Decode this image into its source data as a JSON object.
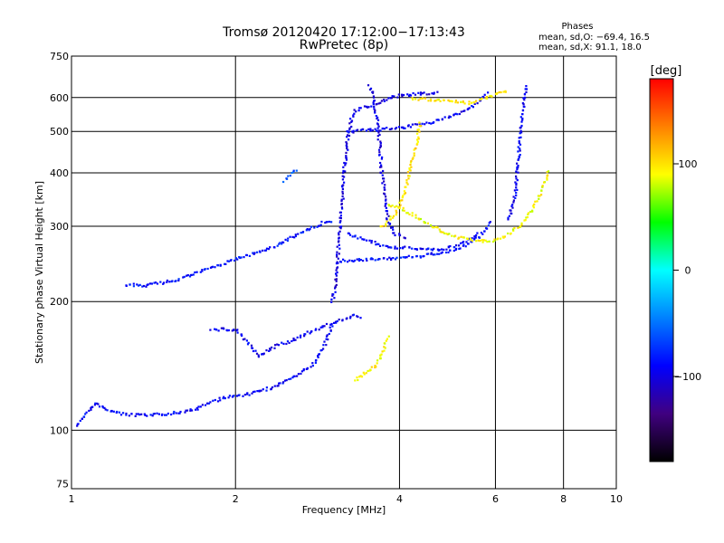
{
  "chart_data": {
    "type": "scatter",
    "title": "Tromsø 20120420 17:12:00−17:13:43",
    "subtitle": "RwPretec (8p)",
    "xlabel": "Frequency [MHz]",
    "ylabel": "Stationary phase Virtual Height [km]",
    "x_scale": "log",
    "y_scale": "log",
    "xlim": [
      1,
      10
    ],
    "ylim": [
      73,
      750
    ],
    "x_ticks": [
      1,
      2,
      4,
      6,
      8,
      10
    ],
    "x_tick_labels": [
      "1",
      "2",
      "4",
      "6",
      "8",
      "10"
    ],
    "y_ticks": [
      75,
      100,
      200,
      300,
      400,
      500,
      600,
      750
    ],
    "y_tick_labels": [
      "75",
      "100",
      "200",
      "300",
      "400",
      "500",
      "600",
      "750"
    ],
    "grid": true,
    "phase_box": {
      "heading": "Phases",
      "line1": "mean, sd,O: −69.4, 16.5",
      "line2": "mean, sd,X:  91.1, 18.0"
    },
    "colorbar": {
      "label": "[deg]",
      "range": [
        -180,
        180
      ],
      "ticks": [
        100,
        0,
        -100
      ],
      "tick_labels": [
        "100",
        "0",
        "−100"
      ],
      "colors": [
        "#ff0000",
        "#ff8000",
        "#ffff00",
        "#00ff00",
        "#00ffff",
        "#0080ff",
        "#0000ff",
        "#400080",
        "#000000"
      ]
    },
    "series": [
      {
        "phase": -90,
        "points": [
          [
            1.02,
            103
          ],
          [
            1.05,
            108
          ],
          [
            1.08,
            113
          ],
          [
            1.1,
            116
          ],
          [
            1.13,
            114
          ],
          [
            1.17,
            112
          ],
          [
            1.22,
            110
          ],
          [
            1.3,
            109
          ],
          [
            1.4,
            109
          ],
          [
            1.5,
            110
          ],
          [
            1.6,
            111
          ],
          [
            1.7,
            113
          ],
          [
            1.8,
            117
          ],
          [
            1.9,
            120
          ],
          [
            2.0,
            121
          ],
          [
            2.1,
            122
          ],
          [
            2.2,
            124
          ],
          [
            2.3,
            126
          ],
          [
            2.45,
            130
          ],
          [
            2.6,
            136
          ],
          [
            2.7,
            140
          ],
          [
            2.8,
            146
          ],
          [
            2.9,
            158
          ],
          [
            3.0,
            178
          ]
        ]
      },
      {
        "phase": -85,
        "points": [
          [
            1.25,
            220
          ],
          [
            1.35,
            219
          ],
          [
            1.45,
            222
          ],
          [
            1.55,
            226
          ],
          [
            1.65,
            232
          ],
          [
            1.75,
            238
          ],
          [
            1.85,
            244
          ],
          [
            1.95,
            250
          ],
          [
            2.05,
            256
          ],
          [
            2.2,
            262
          ],
          [
            2.35,
            270
          ],
          [
            2.5,
            282
          ],
          [
            2.6,
            290
          ],
          [
            2.7,
            296
          ],
          [
            2.8,
            302
          ],
          [
            2.9,
            308
          ],
          [
            3.0,
            306
          ]
        ]
      },
      {
        "phase": -95,
        "points": [
          [
            1.8,
            173
          ],
          [
            1.9,
            173
          ],
          [
            2.0,
            173
          ],
          [
            2.2,
            150
          ],
          [
            2.3,
            155
          ],
          [
            2.4,
            160
          ],
          [
            2.5,
            162
          ],
          [
            2.6,
            165
          ],
          [
            2.7,
            170
          ],
          [
            3.1,
            182
          ],
          [
            3.3,
            186
          ],
          [
            3.4,
            184
          ]
        ]
      },
      {
        "phase": -100,
        "points": [
          [
            3.0,
            200
          ],
          [
            3.05,
            230
          ],
          [
            3.1,
            300
          ],
          [
            3.15,
            400
          ],
          [
            3.2,
            480
          ],
          [
            3.25,
            540
          ],
          [
            3.3,
            560
          ],
          [
            3.4,
            570
          ],
          [
            3.6,
            580
          ],
          [
            3.8,
            600
          ],
          [
            4.0,
            610
          ],
          [
            4.3,
            615
          ],
          [
            4.7,
            620
          ]
        ]
      },
      {
        "phase": -95,
        "points": [
          [
            3.2,
            500
          ],
          [
            3.4,
            505
          ],
          [
            3.7,
            508
          ],
          [
            4.0,
            512
          ],
          [
            4.5,
            525
          ],
          [
            5.0,
            545
          ],
          [
            5.5,
            580
          ],
          [
            5.8,
            620
          ]
        ]
      },
      {
        "phase": -100,
        "points": [
          [
            3.5,
            640
          ],
          [
            3.55,
            620
          ],
          [
            3.6,
            560
          ],
          [
            3.65,
            500
          ],
          [
            3.7,
            400
          ],
          [
            3.75,
            350
          ],
          [
            3.8,
            310
          ],
          [
            3.9,
            290
          ],
          [
            4.1,
            283
          ]
        ]
      },
      {
        "phase": -90,
        "points": [
          [
            3.2,
            290
          ],
          [
            3.5,
            278
          ],
          [
            3.8,
            270
          ],
          [
            4.2,
            268
          ],
          [
            4.7,
            266
          ],
          [
            5.0,
            270
          ],
          [
            5.3,
            280
          ],
          [
            5.6,
            290
          ]
        ]
      },
      {
        "phase": -85,
        "points": [
          [
            3.1,
            250
          ],
          [
            3.4,
            252
          ],
          [
            3.8,
            253
          ],
          [
            4.3,
            256
          ],
          [
            4.8,
            262
          ],
          [
            5.2,
            270
          ],
          [
            5.6,
            285
          ],
          [
            5.9,
            310
          ]
        ]
      },
      {
        "phase": -95,
        "points": [
          [
            6.8,
            640
          ],
          [
            6.75,
            600
          ],
          [
            6.7,
            550
          ],
          [
            6.65,
            500
          ],
          [
            6.6,
            450
          ],
          [
            6.55,
            400
          ],
          [
            6.5,
            360
          ],
          [
            6.4,
            330
          ],
          [
            6.3,
            310
          ]
        ]
      },
      {
        "phase": 95,
        "points": [
          [
            3.3,
            132
          ],
          [
            3.4,
            135
          ],
          [
            3.5,
            138
          ],
          [
            3.6,
            142
          ],
          [
            3.7,
            152
          ],
          [
            3.8,
            168
          ]
        ]
      },
      {
        "phase": 100,
        "points": [
          [
            3.7,
            300
          ],
          [
            3.9,
            320
          ],
          [
            4.1,
            370
          ],
          [
            4.2,
            430
          ],
          [
            4.3,
            480
          ],
          [
            4.35,
            530
          ]
        ]
      },
      {
        "phase": 90,
        "points": [
          [
            3.8,
            340
          ],
          [
            4.0,
            332
          ],
          [
            4.2,
            322
          ],
          [
            4.4,
            310
          ],
          [
            4.7,
            296
          ],
          [
            5.0,
            285
          ],
          [
            5.4,
            280
          ],
          [
            5.8,
            278
          ],
          [
            6.2,
            285
          ],
          [
            6.6,
            300
          ],
          [
            7.0,
            330
          ],
          [
            7.3,
            370
          ],
          [
            7.5,
            410
          ]
        ]
      },
      {
        "phase": 95,
        "points": [
          [
            4.2,
            600
          ],
          [
            4.6,
            595
          ],
          [
            5.0,
            590
          ],
          [
            5.4,
            585
          ],
          [
            5.7,
            600
          ],
          [
            6.0,
            615
          ],
          [
            6.3,
            630
          ]
        ]
      },
      {
        "phase": -60,
        "points": [
          [
            2.45,
            385
          ],
          [
            2.52,
            400
          ],
          [
            2.58,
            410
          ]
        ]
      }
    ]
  }
}
